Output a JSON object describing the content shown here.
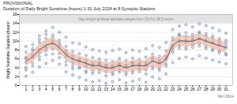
{
  "chart_data": {
    "type": "scatter",
    "title": "PROVISIONAL",
    "subtitle": "Duration of Daily Bright Sunshine (hours) 1-31 July 2024 at 8 Synoptic Stations",
    "caption": "Met Office",
    "y_label": "Bright Sunshine Duration (hours)",
    "x": [
      1,
      2,
      3,
      4,
      5,
      6,
      7,
      8,
      9,
      10,
      11,
      12,
      13,
      14,
      15,
      16,
      17,
      18,
      19,
      20,
      21,
      22,
      23,
      24,
      25,
      26,
      27,
      28,
      29,
      30,
      31
    ],
    "xlim": [
      0,
      32
    ],
    "xticks": [
      1,
      2,
      3,
      4,
      5,
      6,
      7,
      8,
      9,
      10,
      11,
      12,
      13,
      14,
      15,
      16,
      17,
      18,
      19,
      20,
      21,
      22,
      23,
      24,
      25,
      26,
      27,
      28,
      29,
      30,
      31
    ],
    "ylim": [
      0,
      16
    ],
    "yticks": [
      0,
      2,
      4,
      6,
      8,
      10,
      12,
      14,
      16
    ],
    "grid": true,
    "shaded_range": {
      "from": 14,
      "to": 16,
      "color": "#e3e3e3",
      "text": "Day length at these latitudes ranges from 15.4 to 18.5 hours"
    },
    "series": [
      {
        "type": "scatter",
        "marker": "circle",
        "color": "#4a6fa5",
        "values": [
          [
            2.1,
            4.0,
            5.2,
            6.3,
            7.5,
            8.8,
            3.5,
            6.1
          ],
          [
            3.0,
            5.1,
            6.4,
            7.9,
            9.2,
            4.4,
            7.0,
            8.3
          ],
          [
            4.2,
            6.5,
            8.1,
            9.7,
            11.2,
            7.3,
            10.4,
            5.8
          ],
          [
            5.0,
            7.8,
            9.1,
            10.6,
            12.3,
            8.4,
            11.5,
            6.9
          ],
          [
            5.6,
            8.2,
            9.9,
            11.4,
            13.1,
            7.1,
            10.8,
            9.4
          ],
          [
            4.8,
            7.2,
            8.6,
            10.2,
            12.0,
            6.3,
            9.5,
            9.1
          ],
          [
            3.1,
            5.4,
            7.2,
            8.8,
            10.9,
            4.6,
            7.9,
            6.5
          ],
          [
            2.4,
            4.5,
            6.1,
            7.7,
            9.6,
            3.8,
            6.8,
            5.2
          ],
          [
            1.8,
            3.9,
            5.6,
            7.2,
            9.4,
            4.1,
            6.0,
            5.3
          ],
          [
            1.2,
            3.3,
            5.1,
            6.8,
            8.7,
            2.9,
            5.6,
            4.4
          ],
          [
            0.8,
            2.7,
            4.4,
            6.3,
            8.1,
            3.2,
            5.0,
            4.6
          ],
          [
            1.1,
            2.9,
            4.6,
            6.0,
            7.8,
            3.6,
            4.9,
            5.1
          ],
          [
            0.5,
            2.2,
            4.0,
            5.7,
            7.5,
            3.1,
            4.4,
            4.6
          ],
          [
            0.9,
            2.5,
            3.8,
            5.4,
            7.9,
            2.8,
            4.3,
            4.4
          ],
          [
            1.3,
            3.0,
            4.7,
            6.1,
            8.2,
            3.4,
            4.9,
            4.4
          ],
          [
            0.6,
            2.4,
            4.1,
            5.6,
            7.4,
            2.9,
            4.5,
            4.5
          ],
          [
            1.0,
            2.8,
            4.5,
            6.2,
            8.0,
            3.3,
            5.1,
            5.1
          ],
          [
            1.4,
            3.1,
            4.4,
            5.9,
            7.7,
            3.7,
            4.8,
            5.0
          ],
          [
            0.7,
            2.6,
            4.6,
            6.4,
            8.3,
            3.5,
            5.2,
            4.7
          ],
          [
            1.9,
            3.8,
            5.5,
            7.1,
            9.0,
            4.3,
            6.2,
            6.2
          ],
          [
            1.5,
            3.4,
            5.0,
            6.6,
            8.6,
            3.9,
            5.7,
            5.3
          ],
          [
            2.6,
            4.4,
            6.2,
            7.8,
            9.7,
            4.9,
            6.6,
            5.8
          ],
          [
            5.2,
            7.5,
            9.0,
            10.8,
            12.6,
            8.1,
            10.2,
            8.6
          ],
          [
            6.1,
            8.4,
            10.1,
            11.6,
            13.4,
            9.0,
            11.3,
            10.1
          ],
          [
            6.4,
            8.2,
            9.8,
            11.9,
            13.7,
            8.7,
            11.1,
            10.2
          ],
          [
            6.0,
            8.6,
            10.3,
            11.5,
            13.2,
            9.3,
            10.9,
            10.2
          ],
          [
            6.7,
            8.9,
            10.6,
            12.1,
            13.9,
            9.5,
            11.8,
            10.5
          ],
          [
            6.2,
            8.3,
            10.0,
            11.7,
            13.5,
            8.8,
            11.2,
            10.3
          ],
          [
            5.7,
            7.9,
            9.6,
            11.2,
            13.0,
            8.2,
            10.7,
            9.7
          ],
          [
            5.3,
            7.4,
            9.1,
            10.6,
            12.4,
            7.8,
            10.1,
            9.3
          ],
          [
            4.9,
            6.9,
            8.5,
            10.2,
            11.8,
            7.2,
            9.6,
            8.9
          ]
        ]
      },
      {
        "type": "line",
        "line_style": "solid",
        "color": "#555555",
        "band_color": "#e6a893",
        "values": [
          5.5,
          6.5,
          8,
          9,
          9.5,
          8.5,
          7,
          6,
          5.5,
          5,
          4.5,
          4.5,
          4,
          4,
          4.5,
          4,
          4.5,
          4.5,
          4.5,
          5.5,
          5,
          6,
          9,
          10,
          10,
          10,
          10.5,
          10,
          9.5,
          9,
          8.5
        ],
        "lower": [
          4.3,
          5.3,
          6.8,
          7.8,
          8.3,
          7.3,
          5.8,
          4.8,
          4.3,
          3.8,
          3.3,
          3.3,
          2.8,
          2.8,
          3.3,
          2.8,
          3.3,
          3.3,
          3.3,
          4.3,
          3.8,
          4.8,
          7.8,
          8.8,
          8.8,
          8.8,
          9.3,
          8.8,
          8.3,
          7.8,
          7.3
        ],
        "upper": [
          6.7,
          7.7,
          9.2,
          10.2,
          10.7,
          9.7,
          8.2,
          7.2,
          6.7,
          6.2,
          5.7,
          5.7,
          5.2,
          5.2,
          5.7,
          5.2,
          5.7,
          5.7,
          5.7,
          6.7,
          6.2,
          7.2,
          10.2,
          11.2,
          11.2,
          11.2,
          11.7,
          11.2,
          10.7,
          10.2,
          9.7
        ]
      }
    ]
  }
}
